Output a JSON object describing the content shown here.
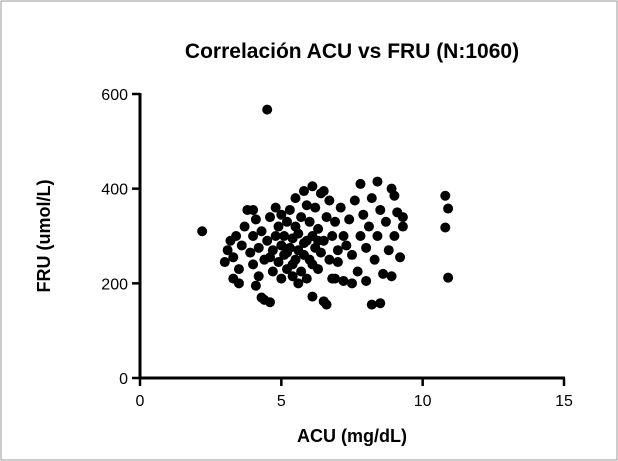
{
  "chart_data": {
    "type": "scatter",
    "title": "Correlación ACU vs FRU (N:1060)",
    "x_label": "ACU (mg/dL)",
    "y_label": "FRU (umol/L)",
    "color": "#000000",
    "x": [
      2.2,
      3.0,
      3.1,
      3.2,
      3.3,
      3.4,
      3.3,
      3.5,
      3.6,
      3.7,
      3.8,
      3.9,
      4.0,
      4.0,
      4.1,
      4.2,
      4.2,
      4.3,
      4.3,
      4.4,
      4.4,
      4.5,
      4.5,
      4.6,
      4.6,
      4.7,
      4.7,
      4.8,
      4.8,
      4.9,
      4.9,
      5.0,
      5.0,
      5.0,
      5.1,
      5.1,
      5.2,
      5.2,
      5.3,
      5.3,
      5.4,
      5.4,
      5.5,
      5.5,
      5.5,
      5.6,
      5.6,
      5.7,
      5.7,
      5.8,
      5.8,
      5.9,
      5.9,
      6.0,
      6.0,
      6.1,
      6.1,
      6.1,
      6.2,
      6.2,
      6.3,
      6.3,
      6.4,
      6.4,
      6.5,
      6.5,
      6.6,
      6.6,
      6.7,
      6.7,
      6.8,
      6.8,
      6.9,
      7.0,
      7.0,
      7.1,
      7.2,
      7.2,
      7.3,
      7.4,
      7.5,
      7.6,
      7.7,
      7.8,
      7.8,
      7.9,
      8.0,
      8.0,
      8.1,
      8.2,
      8.2,
      8.3,
      8.4,
      8.4,
      8.5,
      8.5,
      8.6,
      8.7,
      8.8,
      8.9,
      8.9,
      9.0,
      9.0,
      9.1,
      9.2,
      9.3,
      9.3,
      10.8,
      10.9,
      10.8,
      10.9,
      3.5,
      4.1,
      5.6,
      6.9,
      7.5,
      5.9,
      6.5,
      4.0,
      5.2,
      5.8,
      6.3,
      4.6,
      5.4,
      6.1
    ],
    "y": [
      310,
      245,
      270,
      290,
      210,
      300,
      255,
      230,
      280,
      320,
      355,
      265,
      240,
      300,
      335,
      215,
      275,
      170,
      310,
      250,
      165,
      567,
      290,
      160,
      340,
      225,
      270,
      300,
      360,
      245,
      320,
      210,
      280,
      345,
      260,
      300,
      230,
      330,
      275,
      355,
      215,
      295,
      250,
      320,
      380,
      270,
      305,
      225,
      340,
      260,
      395,
      290,
      210,
      330,
      250,
      172,
      300,
      405,
      275,
      360,
      230,
      315,
      390,
      265,
      162,
      290,
      155,
      340,
      250,
      375,
      210,
      300,
      330,
      270,
      245,
      360,
      300,
      205,
      280,
      335,
      260,
      375,
      225,
      410,
      300,
      345,
      205,
      275,
      320,
      155,
      380,
      250,
      415,
      300,
      158,
      355,
      220,
      330,
      270,
      400,
      215,
      385,
      300,
      350,
      255,
      340,
      320,
      385,
      358,
      318,
      212,
      200,
      195,
      200,
      210,
      200,
      365,
      395,
      355,
      265,
      285,
      290,
      255,
      240,
      240
    ],
    "xlim": [
      0,
      15
    ],
    "xticks": [
      0,
      5,
      10,
      15
    ],
    "ylim": [
      0,
      600
    ],
    "yticks": [
      0,
      200,
      400,
      600
    ]
  }
}
